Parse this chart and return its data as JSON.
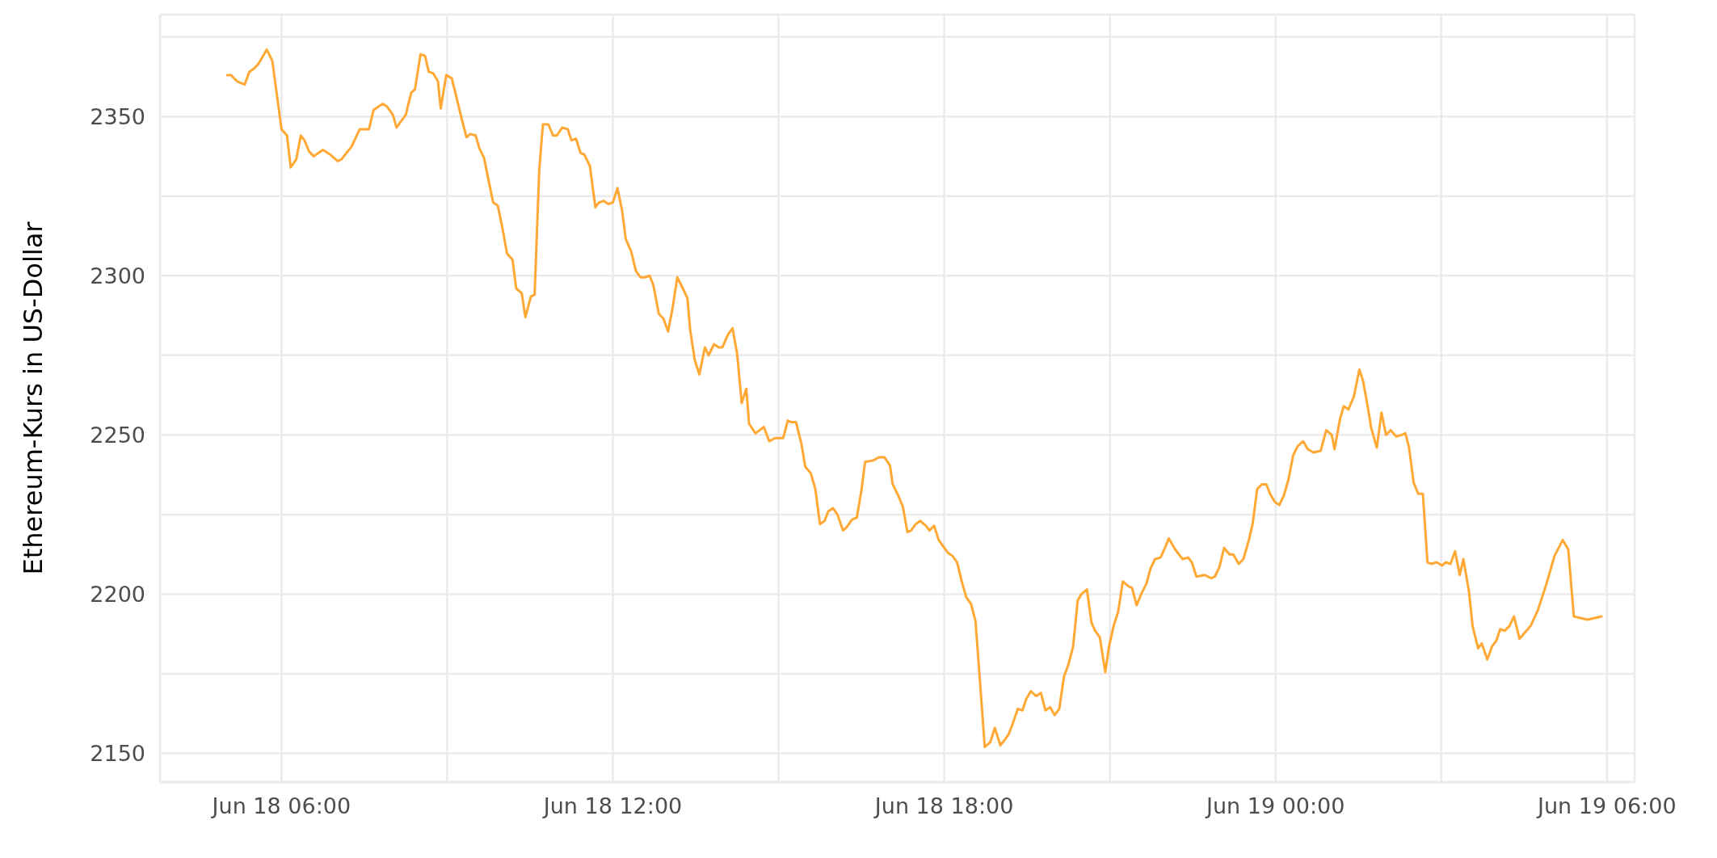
{
  "chart_data": {
    "type": "line",
    "ylabel": "Ethereum-Kurs in US-Dollar",
    "color": "#ffa833",
    "x": [
      "--06-18T05:01",
      "--06-18T05:05",
      "--06-18T05:12",
      "--06-18T05:20",
      "--06-18T05:25",
      "--06-18T05:30",
      "--06-18T05:35",
      "--06-18T05:40",
      "--06-18T05:44",
      "--06-18T05:50",
      "--06-18T06:00",
      "--06-18T06:06",
      "--06-18T06:10",
      "--06-18T06:16",
      "--06-18T06:21",
      "--06-18T06:25",
      "--06-18T06:30",
      "--06-18T06:35",
      "--06-18T06:45",
      "--06-18T06:53",
      "--06-18T07:01",
      "--06-18T07:05",
      "--06-18T07:16",
      "--06-18T07:25",
      "--06-18T07:35",
      "--06-18T07:40",
      "--06-18T07:50",
      "--06-18T07:55",
      "--06-18T08:01",
      "--06-18T08:05",
      "--06-18T08:15",
      "--06-18T08:21",
      "--06-18T08:25",
      "--06-18T08:31",
      "--06-18T08:36",
      "--06-18T08:40",
      "--06-18T08:45",
      "--06-18T08:50",
      "--06-18T08:53",
      "--06-18T08:59",
      "--06-18T09:05",
      "--06-18T09:16",
      "--06-18T09:21",
      "--06-18T09:25",
      "--06-18T09:31",
      "--06-18T09:35",
      "--06-18T09:40",
      "--06-18T09:46",
      "--06-18T09:50",
      "--06-18T09:55",
      "--06-18T10:00",
      "--06-18T10:05",
      "--06-18T10:11",
      "--06-18T10:15",
      "--06-18T10:21",
      "--06-18T10:25",
      "--06-18T10:31",
      "--06-18T10:35",
      "--06-18T10:40",
      "--06-18T10:44",
      "--06-18T10:50",
      "--06-18T10:55",
      "--06-18T10:59",
      "--06-18T11:05",
      "--06-18T11:11",
      "--06-18T11:15",
      "--06-18T11:20",
      "--06-18T11:25",
      "--06-18T11:29",
      "--06-18T11:35",
      "--06-18T11:41",
      "--06-18T11:45",
      "--06-18T11:50",
      "--06-18T11:55",
      "--06-18T12:00",
      "--06-18T12:05",
      "--06-18T12:10",
      "--06-18T12:14",
      "--06-18T12:20",
      "--06-18T12:25",
      "--06-18T12:30",
      "--06-18T12:35",
      "--06-18T12:40",
      "--06-18T12:44",
      "--06-18T12:50",
      "--06-18T12:55",
      "--06-18T13:00",
      "--06-18T13:05",
      "--06-18T13:10",
      "--06-18T13:16",
      "--06-18T13:21",
      "--06-18T13:24",
      "--06-18T13:29",
      "--06-18T13:34",
      "--06-18T13:40",
      "--06-18T13:44",
      "--06-18T13:50",
      "--06-18T13:55",
      "--06-18T13:59",
      "--06-18T14:05",
      "--06-18T14:10",
      "--06-18T14:15",
      "--06-18T14:20",
      "--06-18T14:25",
      "--06-18T14:28",
      "--06-18T14:35",
      "--06-18T14:44",
      "--06-18T14:50",
      "--06-18T14:56",
      "--06-18T15:00",
      "--06-18T15:05",
      "--06-18T15:10",
      "--06-18T15:14",
      "--06-18T15:19",
      "--06-18T15:25",
      "--06-18T15:29",
      "--06-18T15:35",
      "--06-18T15:40",
      "--06-18T15:45",
      "--06-18T15:50",
      "--06-18T15:54",
      "--06-18T15:59",
      "--06-18T16:04",
      "--06-18T16:10",
      "--06-18T16:14",
      "--06-18T16:20",
      "--06-18T16:25",
      "--06-18T16:30",
      "--06-18T16:34",
      "--06-18T16:43",
      "--06-18T16:49",
      "--06-18T16:55",
      "--06-18T17:01",
      "--06-18T17:04",
      "--06-18T17:10",
      "--06-18T17:15",
      "--06-18T17:20",
      "--06-18T17:24",
      "--06-18T17:29",
      "--06-18T17:34",
      "--06-18T17:40",
      "--06-18T17:44",
      "--06-18T17:49",
      "--06-18T17:54",
      "--06-18T17:59",
      "--06-18T18:04",
      "--06-18T18:09",
      "--06-18T18:14",
      "--06-18T18:19",
      "--06-18T18:24",
      "--06-18T18:29",
      "--06-18T18:34",
      "--06-18T18:39",
      "--06-18T18:44",
      "--06-18T18:50",
      "--06-18T18:55",
      "--06-18T19:01",
      "--06-18T19:05",
      "--06-18T19:10",
      "--06-18T19:14",
      "--06-18T19:20",
      "--06-18T19:25",
      "--06-18T19:29",
      "--06-18T19:34",
      "--06-18T19:40",
      "--06-18T19:45",
      "--06-18T19:50",
      "--06-18T19:55",
      "--06-18T20:00",
      "--06-18T20:05",
      "--06-18T20:10",
      "--06-18T20:15",
      "--06-18T20:20",
      "--06-18T20:25",
      "--06-18T20:29",
      "--06-18T20:35",
      "--06-18T20:40",
      "--06-18T20:44",
      "--06-18T20:49",
      "--06-18T20:55",
      "--06-18T20:59",
      "--06-18T21:04",
      "--06-18T21:09",
      "--06-18T21:14",
      "--06-18T21:20",
      "--06-18T21:24",
      "--06-18T21:29",
      "--06-18T21:34",
      "--06-18T21:40",
      "--06-18T21:44",
      "--06-18T21:49",
      "--06-18T21:55",
      "--06-18T21:59",
      "--06-18T22:04",
      "--06-18T22:11",
      "--06-18T22:19",
      "--06-18T22:25",
      "--06-18T22:29",
      "--06-18T22:34",
      "--06-18T22:43",
      "--06-18T22:50",
      "--06-18T22:54",
      "--06-18T22:59",
      "--06-18T23:04",
      "--06-18T23:10",
      "--06-18T23:14",
      "--06-18T23:20",
      "--06-18T23:25",
      "--06-18T23:31",
      "--06-18T23:35",
      "--06-18T23:40",
      "--06-18T23:45",
      "--06-18T23:50",
      "--06-18T23:54",
      "--06-18T23:59",
      "--06-19T00:04",
      "--06-19T00:09",
      "--06-19T00:14",
      "--06-19T00:19",
      "--06-19T00:24",
      "--06-19T00:30",
      "--06-19T00:35",
      "--06-19T00:41",
      "--06-19T00:49",
      "--06-19T00:55",
      "--06-19T01:01",
      "--06-19T01:04",
      "--06-19T01:10",
      "--06-19T01:14",
      "--06-19T01:19",
      "--06-19T01:25",
      "--06-19T01:31",
      "--06-19T01:35",
      "--06-19T01:40",
      "--06-19T01:44",
      "--06-19T01:50",
      "--06-19T01:55",
      "--06-19T02:00",
      "--06-19T02:05",
      "--06-19T02:11",
      "--06-19T02:17",
      "--06-19T02:21",
      "--06-19T02:25",
      "--06-19T02:30",
      "--06-19T02:35",
      "--06-19T02:40",
      "--06-19T02:45",
      "--06-19T02:49",
      "--06-19T02:55",
      "--06-19T03:01",
      "--06-19T03:05",
      "--06-19T03:10",
      "--06-19T03:15",
      "--06-19T03:20",
      "--06-19T03:24",
      "--06-19T03:30",
      "--06-19T03:34",
      "--06-19T03:40",
      "--06-19T03:44",
      "--06-19T03:50",
      "--06-19T03:55",
      "--06-19T04:00",
      "--06-19T04:04",
      "--06-19T04:09",
      "--06-19T04:14",
      "--06-19T04:19",
      "--06-19T04:25",
      "--06-19T04:31",
      "--06-19T04:37",
      "--06-19T04:45",
      "--06-19T04:54",
      "--06-19T05:03",
      "--06-19T05:12",
      "--06-19T05:18",
      "--06-19T05:24",
      "--06-19T05:39",
      "--06-19T05:54"
    ],
    "values": [
      2363,
      2363,
      2361,
      2360,
      2364,
      2365,
      2366.5,
      2369,
      2371,
      2367.5,
      2346,
      2344,
      2334,
      2336.5,
      2344,
      2342.5,
      2339,
      2337.5,
      2339.5,
      2338,
      2336,
      2336.5,
      2340.5,
      2346,
      2346,
      2352,
      2354,
      2353,
      2350.5,
      2346.5,
      2350.5,
      2357.5,
      2358.5,
      2369.5,
      2369,
      2364,
      2363.5,
      2361,
      2352.5,
      2363,
      2362,
      2349,
      2343.5,
      2344.5,
      2344,
      2340,
      2337,
      2328.5,
      2323,
      2322,
      2315,
      2307,
      2305,
      2296,
      2294.5,
      2287,
      2293.5,
      2294,
      2333,
      2347.5,
      2347.5,
      2344,
      2344,
      2346.5,
      2346,
      2342.5,
      2343,
      2338.5,
      2338,
      2334.5,
      2321.5,
      2323,
      2323.5,
      2322.5,
      2323,
      2327.5,
      2320.5,
      2311.5,
      2307.5,
      2301.5,
      2299.5,
      2299.5,
      2300,
      2297,
      2288,
      2286.5,
      2282.5,
      2290,
      2299.5,
      2296,
      2293,
      2283,
      2273.5,
      2269,
      2277.5,
      2275,
      2278.5,
      2277.5,
      2277.5,
      2281.5,
      2283.5,
      2275.5,
      2260,
      2264.5,
      2253.5,
      2250.5,
      2252.5,
      2248,
      2249,
      2249,
      2249,
      2254.5,
      2254,
      2254,
      2247,
      2240,
      2238,
      2233,
      2222,
      2223,
      2226,
      2227,
      2225,
      2220,
      2221,
      2223.5,
      2224,
      2232.5,
      2241.5,
      2242,
      2243,
      2243,
      2240.5,
      2234.5,
      2231,
      2227.5,
      2219.5,
      2220,
      2222,
      2223,
      2221.5,
      2220,
      2221.5,
      2217,
      2215,
      2213,
      2212,
      2210,
      2204,
      2199,
      2197,
      2191.5,
      2172,
      2152,
      2153.5,
      2158,
      2152.5,
      2154,
      2156,
      2159,
      2164,
      2163.5,
      2167,
      2169.5,
      2168,
      2169,
      2163.5,
      2164.5,
      2162,
      2164,
      2174,
      2178,
      2183.5,
      2198,
      2200,
      2201.5,
      2191,
      2188.5,
      2186.5,
      2175.5,
      2183.5,
      2190,
      2194.5,
      2204,
      2202.5,
      2202,
      2196.5,
      2200,
      2203.5,
      2208,
      2211,
      2211.5,
      2214,
      2217.5,
      2214,
      2211,
      2211.5,
      2210,
      2205.5,
      2206,
      2205,
      2205.5,
      2208.5,
      2214.5,
      2212.5,
      2212.5,
      2209.5,
      2211,
      2217,
      2222,
      2233,
      2234.5,
      2234.5,
      2231.5,
      2229,
      2228,
      2231,
      2236,
      2243.5,
      2246.5,
      2248,
      2245.5,
      2244.5,
      2245,
      2251.5,
      2250,
      2245.5,
      2255,
      2259,
      2258,
      2262,
      2270.5,
      2267,
      2259,
      2252,
      2246,
      2257,
      2250,
      2251.5,
      2249.5,
      2250,
      2250.5,
      2246,
      2235,
      2231.5,
      2231.5,
      2210,
      2209.5,
      2210,
      2209,
      2210,
      2209.5,
      2213.5,
      2206,
      2211,
      2201,
      2190,
      2183,
      2184.5,
      2179.5,
      2183.5,
      2185.5,
      2189,
      2188.5,
      2190,
      2193,
      2186,
      2188,
      2190,
      2195,
      2203,
      2212,
      2217,
      2214,
      2193,
      2192,
      2193
    ],
    "xlim": [
      "--06-18T03:48",
      "--06-19T06:30"
    ],
    "xticks": [
      {
        "value": "--06-18T06:00",
        "label": "Jun 18 06:00"
      },
      {
        "value": "--06-18T09:00",
        "label": null
      },
      {
        "value": "--06-18T12:00",
        "label": "Jun 18 12:00"
      },
      {
        "value": "--06-18T15:00",
        "label": null
      },
      {
        "value": "--06-18T18:00",
        "label": "Jun 18 18:00"
      },
      {
        "value": "--06-18T21:00",
        "label": null
      },
      {
        "value": "--06-19T00:00",
        "label": "Jun 19 00:00"
      },
      {
        "value": "--06-19T03:00",
        "label": null
      },
      {
        "value": "--06-19T06:00",
        "label": "Jun 19 06:00"
      }
    ],
    "ylim": [
      2141,
      2382
    ],
    "yticks": [
      2150,
      {
        "value": 2175,
        "label": null
      },
      2200,
      {
        "value": 2225,
        "label": null
      },
      2250,
      {
        "value": 2275,
        "label": null
      },
      2300,
      {
        "value": 2325,
        "label": null
      },
      2350,
      {
        "value": 2375,
        "label": null
      }
    ],
    "grid": true
  }
}
